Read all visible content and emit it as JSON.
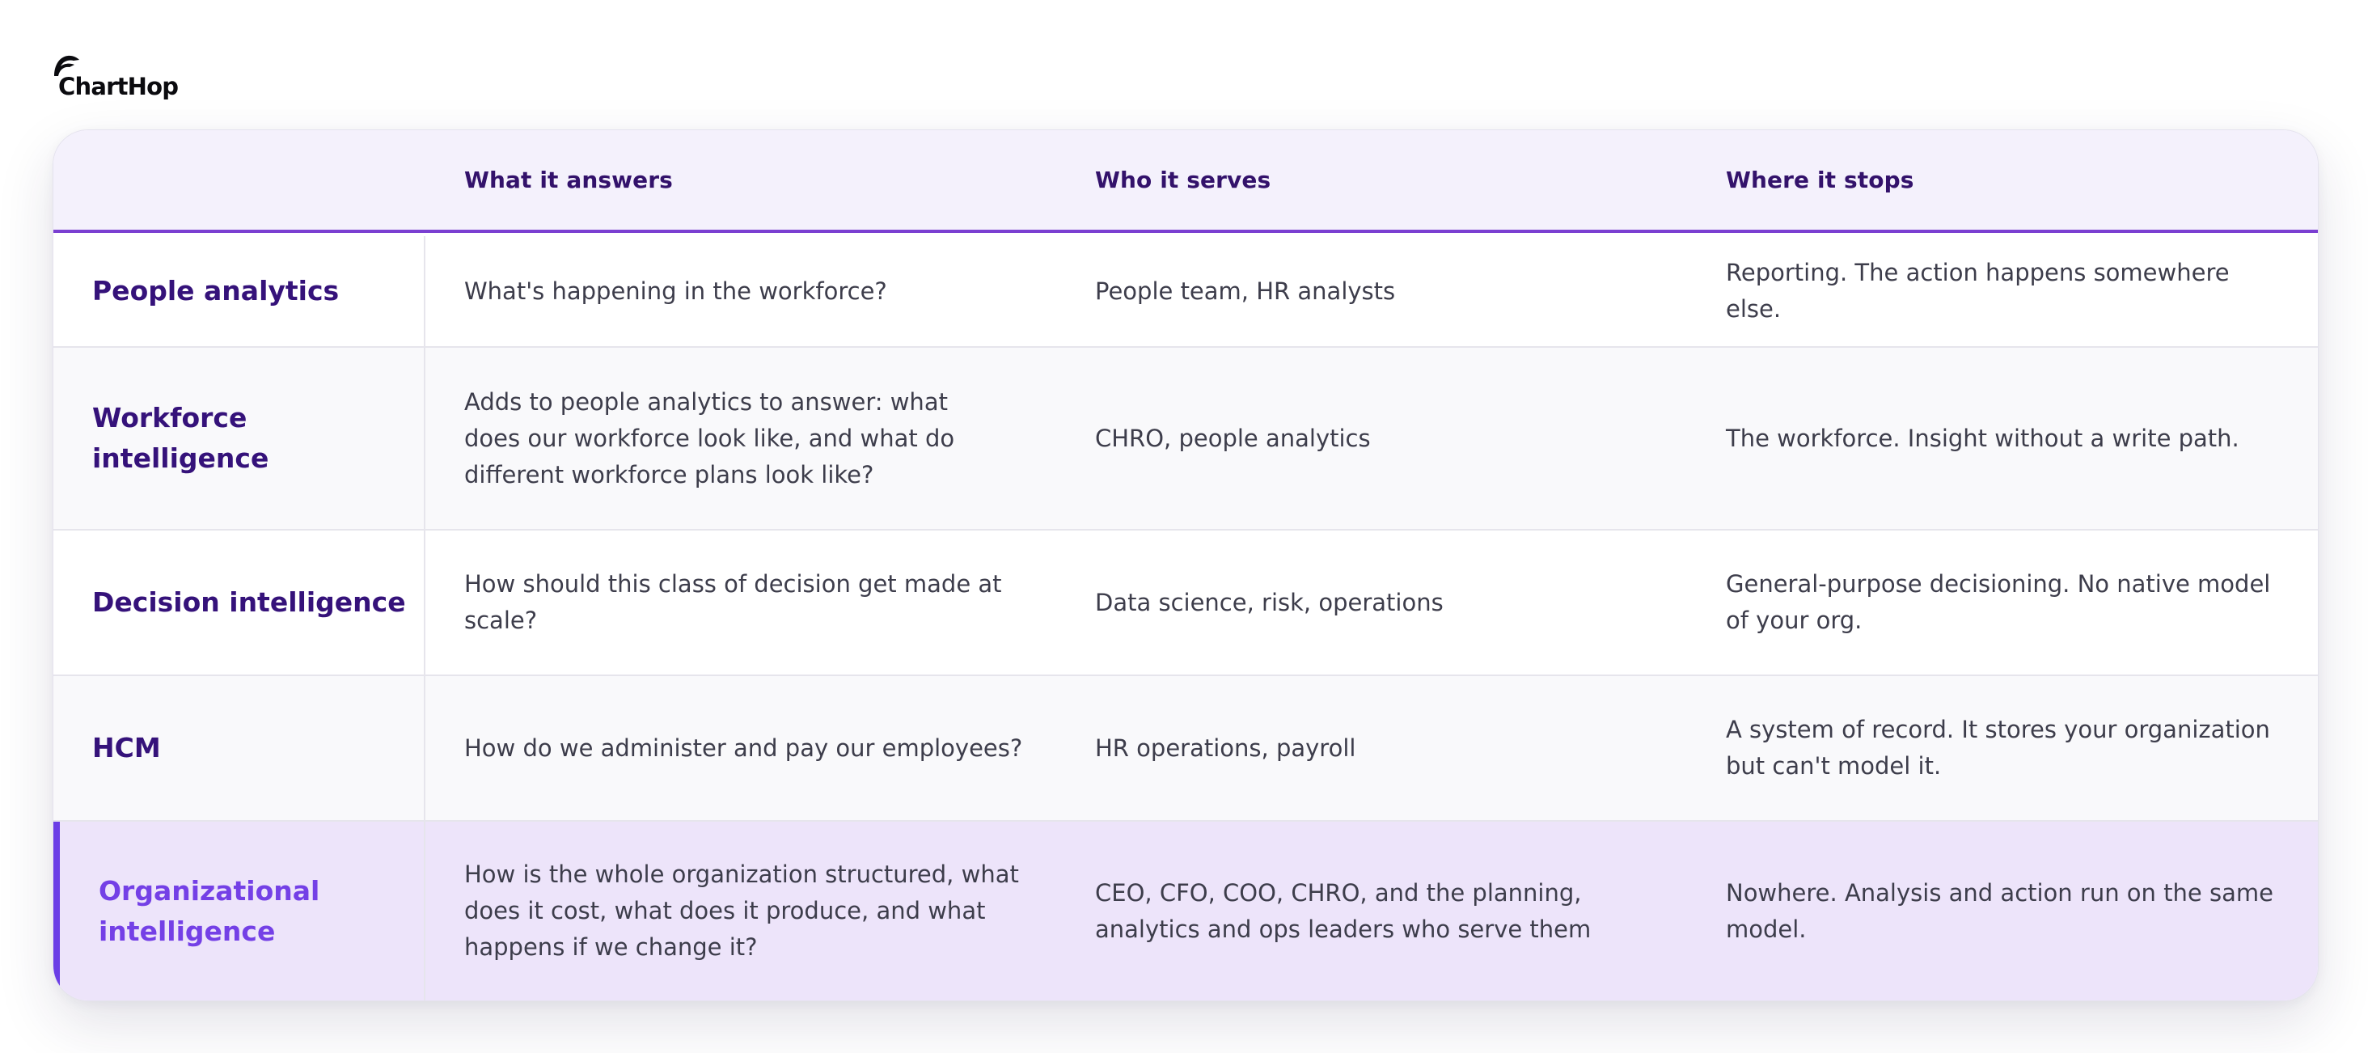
{
  "brand": {
    "name": "ChartHop",
    "logo_icon": "charthop-bird-logo-icon"
  },
  "table": {
    "headers": [
      "",
      "What it answers",
      "Who it serves",
      "Where it stops"
    ],
    "rows": [
      {
        "label": "People analytics",
        "answers": "What's happening in the workforce?",
        "serves": "People team, HR analysts",
        "stops": "Reporting. The action happens somewhere else."
      },
      {
        "label": "Workforce intelligence",
        "answers": "Adds to people analytics to answer: what does our workforce look like, and what do different workforce plans look like?",
        "serves": "CHRO, people analytics",
        "stops": "The workforce. Insight without a write path."
      },
      {
        "label": "Decision intelligence",
        "answers": "How should this class of decision get made at scale?",
        "serves": "Data science, risk, operations",
        "stops": "General-purpose decisioning. No native model of your org."
      },
      {
        "label": "HCM",
        "answers": "How do we administer and pay our employees?",
        "serves": "HR operations, payroll",
        "stops": "A system of record. It stores your organization but can't model it."
      },
      {
        "label": "Organizational intelligence",
        "answers": "How is the whole organization structured, what does it cost, what does it produce, and what happens if we change it?",
        "serves": "CEO, CFO, COO, CHRO, and the planning, analytics and ops leaders who serve them",
        "stops": "Nowhere. Analysis and action run on the same model.",
        "highlighted": true
      }
    ]
  },
  "colors": {
    "header_bg": "#f4f1fc",
    "header_rule": "#7a3fd1",
    "label_text": "#35127a",
    "highlight_bg": "#ede4fa",
    "highlight_accent": "#6b3ee6",
    "highlight_label": "#7440e6"
  }
}
